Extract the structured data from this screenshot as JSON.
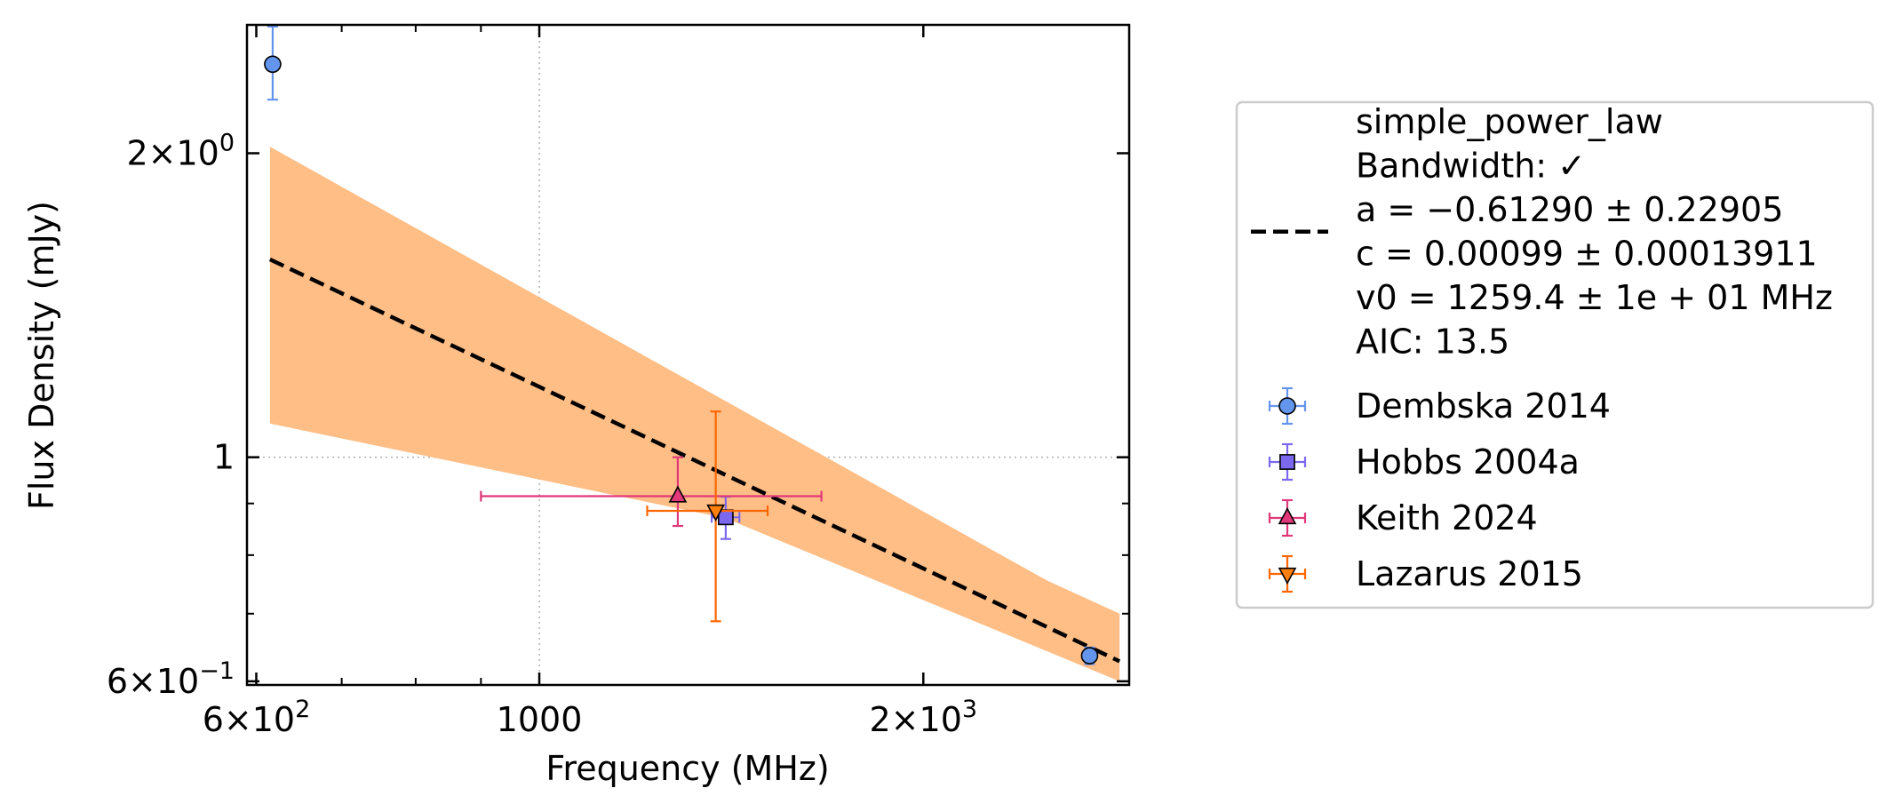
{
  "chart_data": {
    "type": "scatter",
    "x_scale": "log",
    "y_scale": "log",
    "xlabel": "Frequency (MHz)",
    "ylabel": "Flux Density (mJy)",
    "xlim": [
      590,
      2900
    ],
    "ylim": [
      0.595,
      2.68
    ],
    "grid": "dotted lines at major ticks",
    "legend_placement": "outside right",
    "x_ticks": [
      {
        "value": 600,
        "label": "6×10",
        "exp": "2"
      },
      {
        "value": 1000,
        "label": "1000",
        "exp": ""
      },
      {
        "value": 2000,
        "label": "2×10",
        "exp": "3"
      }
    ],
    "y_ticks": [
      {
        "value": 0.6,
        "label": "6×10",
        "exp": "−1"
      },
      {
        "value": 1.0,
        "label": "1",
        "exp": ""
      },
      {
        "value": 2.0,
        "label": "2×10",
        "exp": "0"
      }
    ],
    "fit": {
      "name": "simple_power_law",
      "legend_lines": [
        "simple_power_law",
        "Bandwidth: ✓",
        "a = −0.61290 ± 0.22905",
        "c = 0.00099 ± 0.00013911",
        "v0 = 1259.4 ± 1e + 01 MHz",
        "AIC: 13.5"
      ],
      "line_color": "#000000",
      "band_color": "#ffbe86",
      "x": [
        615,
        2850
      ],
      "y": [
        1.57,
        0.628
      ],
      "band_upper_points": [
        [
          615,
          2.03
        ],
        [
          2500,
          0.755
        ],
        [
          2850,
          0.7
        ]
      ],
      "band_lower_points": [
        [
          615,
          1.08
        ],
        [
          1400,
          0.87
        ],
        [
          2850,
          0.6
        ]
      ]
    },
    "series": [
      {
        "name": "Dembska 2014",
        "marker": "circle",
        "color": "#6495ed",
        "ecolor": "#6495ed",
        "points": [
          {
            "x": 618,
            "y": 2.45,
            "yerr": [
              0.19,
              0.22
            ],
            "xerr": [
              0,
              0
            ]
          },
          {
            "x": 2700,
            "y": 0.636,
            "yerr": [
              0.012,
              0.012
            ],
            "xerr": [
              25,
              25
            ]
          }
        ]
      },
      {
        "name": "Hobbs 2004a",
        "marker": "square",
        "color": "#7b68ee",
        "ecolor": "#7b68ee",
        "points": [
          {
            "x": 1400,
            "y": 0.872,
            "yerr": [
              0.042,
              0.042
            ],
            "xerr": [
              35,
              35
            ]
          }
        ]
      },
      {
        "name": "Keith 2024",
        "marker": "triangle-up",
        "color": "#e0387a",
        "ecolor": "#e0387a",
        "points": [
          {
            "x": 1284,
            "y": 0.915,
            "yerr": [
              0.06,
              0.085
            ],
            "xerr": [
              384,
              380
            ]
          }
        ]
      },
      {
        "name": "Lazarus 2015",
        "marker": "triangle-down",
        "color": "#ff7f0e",
        "ecolor": "#ff6600",
        "points": [
          {
            "x": 1375,
            "y": 0.885,
            "yerr": [
              0.197,
              0.225
            ],
            "xerr": [
              160,
              135
            ]
          }
        ]
      }
    ]
  }
}
